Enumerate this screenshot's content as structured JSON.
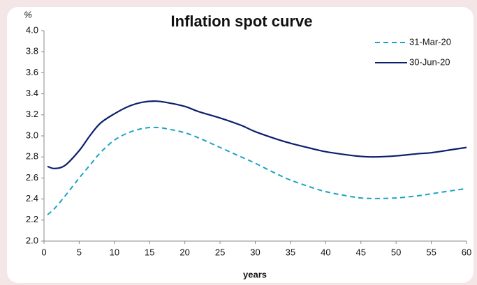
{
  "chart_data": {
    "type": "line",
    "title": "Inflation spot curve",
    "y_label": "%",
    "x_label": "years",
    "x": [
      0.5,
      1.5,
      3,
      5,
      6.5,
      8,
      10,
      12,
      14,
      16,
      18,
      20,
      22,
      25,
      28,
      30,
      33,
      35,
      38,
      40,
      43,
      45,
      47,
      50,
      53,
      55,
      58,
      60
    ],
    "series": [
      {
        "name": "31-Mar-20",
        "color": "#1ba3c2",
        "dash": true,
        "values": [
          2.25,
          2.31,
          2.43,
          2.6,
          2.72,
          2.84,
          2.96,
          3.03,
          3.07,
          3.08,
          3.06,
          3.03,
          2.98,
          2.89,
          2.8,
          2.74,
          2.64,
          2.58,
          2.51,
          2.47,
          2.43,
          2.41,
          2.405,
          2.41,
          2.43,
          2.45,
          2.48,
          2.5
        ]
      },
      {
        "name": "30-Jun-20",
        "color": "#0d1f6e",
        "dash": false,
        "values": [
          2.71,
          2.69,
          2.72,
          2.86,
          3.0,
          3.12,
          3.21,
          3.28,
          3.32,
          3.33,
          3.31,
          3.28,
          3.23,
          3.17,
          3.1,
          3.04,
          2.97,
          2.93,
          2.88,
          2.85,
          2.82,
          2.805,
          2.8,
          2.81,
          2.83,
          2.84,
          2.87,
          2.89
        ]
      }
    ],
    "xlim": [
      0,
      60
    ],
    "xticks": [
      0,
      5,
      10,
      15,
      20,
      25,
      30,
      35,
      40,
      45,
      50,
      55,
      60
    ],
    "ylim": [
      2,
      4
    ],
    "yticks": [
      {
        "value": 2,
        "label": "2.0"
      },
      2.2,
      2.4,
      2.6,
      2.8,
      {
        "value": 3,
        "label": "3.0"
      },
      3.2,
      3.4,
      3.6,
      3.8,
      {
        "value": 4,
        "label": "4.0"
      }
    ],
    "grid": false,
    "legend": "upper right"
  }
}
